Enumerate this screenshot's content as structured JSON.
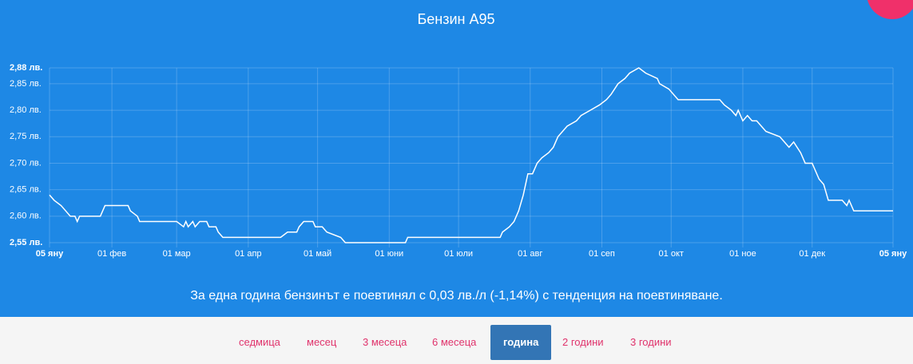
{
  "chart_data": {
    "type": "line",
    "title": "Бензин А95",
    "x": [
      0,
      2,
      5,
      7,
      9,
      11,
      12,
      13,
      22,
      23,
      24,
      34,
      35,
      38,
      39,
      55,
      58,
      59,
      60,
      62,
      63,
      65,
      68,
      69,
      72,
      73,
      75,
      100,
      103,
      107,
      108,
      110,
      114,
      115,
      118,
      120,
      126,
      128,
      154,
      155,
      195,
      196,
      199,
      201,
      203,
      205,
      207,
      209,
      211,
      213,
      216,
      218,
      220,
      222,
      224,
      228,
      230,
      234,
      238,
      241,
      243,
      246,
      249,
      251,
      255,
      258,
      263,
      264,
      268,
      270,
      272,
      290,
      292,
      295,
      297,
      298,
      300,
      302,
      304,
      306,
      310,
      316,
      318,
      320,
      322,
      325,
      327,
      330,
      333,
      335,
      337,
      343,
      345,
      346,
      348,
      365
    ],
    "series": [
      {
        "name": "Бензин А95",
        "color": "#ffffff",
        "values": [
          2.64,
          2.63,
          2.62,
          2.61,
          2.6,
          2.6,
          2.59,
          2.6,
          2.6,
          2.61,
          2.62,
          2.62,
          2.61,
          2.6,
          2.59,
          2.59,
          2.58,
          2.59,
          2.58,
          2.59,
          2.58,
          2.59,
          2.59,
          2.58,
          2.58,
          2.57,
          2.56,
          2.56,
          2.57,
          2.57,
          2.58,
          2.59,
          2.59,
          2.58,
          2.58,
          2.57,
          2.56,
          2.55,
          2.55,
          2.56,
          2.56,
          2.57,
          2.58,
          2.59,
          2.61,
          2.64,
          2.68,
          2.68,
          2.7,
          2.71,
          2.72,
          2.73,
          2.75,
          2.76,
          2.77,
          2.78,
          2.79,
          2.8,
          2.81,
          2.82,
          2.83,
          2.85,
          2.86,
          2.87,
          2.88,
          2.87,
          2.86,
          2.85,
          2.84,
          2.83,
          2.82,
          2.82,
          2.81,
          2.8,
          2.79,
          2.8,
          2.78,
          2.79,
          2.78,
          2.78,
          2.76,
          2.75,
          2.74,
          2.73,
          2.74,
          2.72,
          2.7,
          2.7,
          2.67,
          2.66,
          2.63,
          2.63,
          2.62,
          2.63,
          2.61,
          2.61
        ]
      }
    ],
    "xlim": [
      0,
      365
    ],
    "xticks": [
      {
        "value": 0,
        "label": "05 яну"
      },
      {
        "value": 27,
        "label": "01 фев"
      },
      {
        "value": 55,
        "label": "01 мар"
      },
      {
        "value": 86,
        "label": "01 апр"
      },
      {
        "value": 116,
        "label": "01 май"
      },
      {
        "value": 147,
        "label": "01 юни"
      },
      {
        "value": 177,
        "label": "01 юли"
      },
      {
        "value": 208,
        "label": "01 авг"
      },
      {
        "value": 239,
        "label": "01 сеп"
      },
      {
        "value": 269,
        "label": "01 окт"
      },
      {
        "value": 300,
        "label": "01 ное"
      },
      {
        "value": 330,
        "label": "01 дек"
      },
      {
        "value": 365,
        "label": "05 яну"
      }
    ],
    "ylim": [
      2.55,
      2.88
    ],
    "yticks": [
      {
        "value": 2.55,
        "label": "2,55 лв."
      },
      {
        "value": 2.6,
        "label": "2,60 лв."
      },
      {
        "value": 2.65,
        "label": "2,65 лв."
      },
      {
        "value": 2.7,
        "label": "2,70 лв."
      },
      {
        "value": 2.75,
        "label": "2,75 лв."
      },
      {
        "value": 2.8,
        "label": "2,80 лв."
      },
      {
        "value": 2.85,
        "label": "2,85 лв."
      },
      {
        "value": 2.88,
        "label": "2,88 лв."
      }
    ],
    "grid": true
  },
  "summary": "За една година бензинът е поевтинял с 0,03 лв./л (-1,14%) с тенденция на поевтиняване.",
  "tabs": [
    "седмица",
    "месец",
    "3 месеца",
    "6 месеца",
    "година",
    "2 години",
    "3 години"
  ],
  "selected_tab": 4
}
